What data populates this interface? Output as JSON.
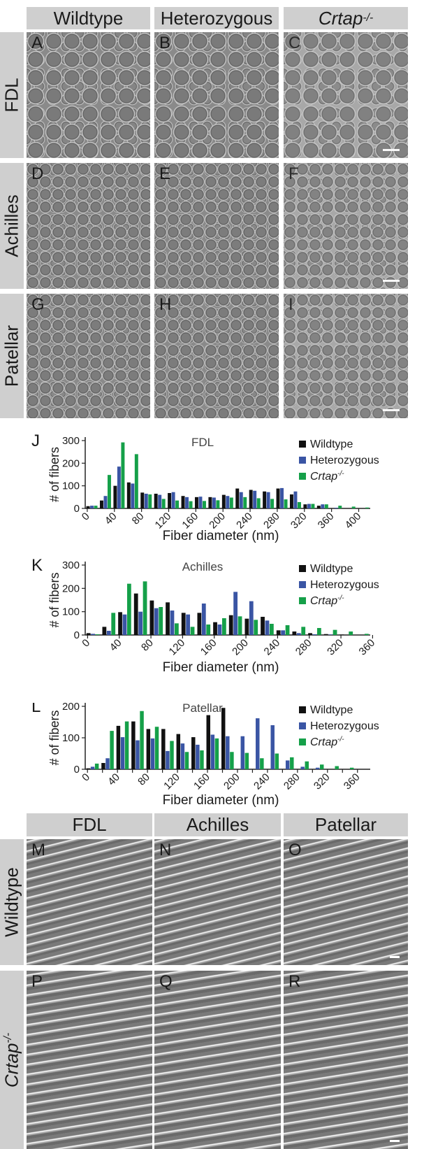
{
  "top_grid": {
    "col_headers": [
      "Wildtype",
      "Heterozygous",
      "Crtap"
    ],
    "col_header_sup": "-/-",
    "row_headers": [
      "FDL",
      "Achilles",
      "Patellar"
    ],
    "panel_labels": [
      "A",
      "B",
      "C",
      "D",
      "E",
      "F",
      "G",
      "H",
      "I"
    ]
  },
  "bottom_grid": {
    "col_headers": [
      "FDL",
      "Achilles",
      "Patellar"
    ],
    "row_headers": [
      "Wildtype",
      "Crtap"
    ],
    "row_header_sup": "-/-",
    "panel_labels": [
      "M",
      "N",
      "O",
      "P",
      "Q",
      "R"
    ]
  },
  "colors": {
    "wildtype": "#111111",
    "heterozygous": "#3a55a4",
    "crtap": "#15a049",
    "header_bg": "#cfcfcf"
  },
  "chart_data": [
    {
      "type": "bar",
      "panel_label": "J",
      "title": "FDL",
      "xlabel": "Fiber diameter (nm)",
      "ylabel": "# of fibers",
      "ylim": [
        0,
        300
      ],
      "yticks": [
        0,
        100,
        200,
        300
      ],
      "xticks": [
        "0",
        "40",
        "80",
        "120",
        "160",
        "200",
        "240",
        "280",
        "320",
        "360",
        "400"
      ],
      "xtick_start": 0,
      "xtick_step": 40,
      "bin_start": 0,
      "bin_step": 20,
      "legend_position": "top-right",
      "series": [
        {
          "name": "Wildtype",
          "values": [
            10,
            35,
            100,
            115,
            70,
            65,
            68,
            55,
            50,
            50,
            60,
            88,
            82,
            75,
            88,
            62,
            18,
            12,
            0,
            0,
            0
          ]
        },
        {
          "name": "Heterozygous",
          "values": [
            12,
            55,
            185,
            110,
            65,
            60,
            72,
            50,
            52,
            48,
            55,
            72,
            78,
            72,
            90,
            75,
            20,
            18,
            3,
            0,
            0
          ]
        },
        {
          "name": "Crtap",
          "values": [
            12,
            148,
            292,
            240,
            62,
            42,
            35,
            32,
            33,
            36,
            48,
            50,
            45,
            42,
            40,
            28,
            20,
            18,
            12,
            8,
            4
          ]
        }
      ]
    },
    {
      "type": "bar",
      "panel_label": "K",
      "title": "Achilles",
      "xlabel": "Fiber diameter (nm)",
      "ylabel": "# of fibers",
      "ylim": [
        0,
        300
      ],
      "yticks": [
        0,
        100,
        200,
        300
      ],
      "xticks": [
        "0",
        "40",
        "80",
        "120",
        "160",
        "200",
        "240",
        "280",
        "320",
        "360"
      ],
      "xtick_start": 0,
      "xtick_step": 40,
      "bin_start": 0,
      "bin_step": 20,
      "legend_position": "top-right",
      "series": [
        {
          "name": "Wildtype",
          "values": [
            8,
            35,
            98,
            178,
            148,
            140,
            95,
            95,
            55,
            85,
            70,
            78,
            20,
            15,
            8,
            4,
            2,
            0
          ]
        },
        {
          "name": "Heterozygous",
          "values": [
            5,
            18,
            88,
            100,
            115,
            105,
            88,
            135,
            45,
            185,
            145,
            62,
            20,
            8,
            3,
            2,
            0,
            0
          ]
        },
        {
          "name": "Crtap",
          "values": [
            3,
            95,
            220,
            230,
            120,
            50,
            35,
            45,
            72,
            80,
            65,
            48,
            42,
            35,
            30,
            22,
            15,
            5
          ]
        }
      ]
    },
    {
      "type": "bar",
      "panel_label": "L",
      "title": "Patellar",
      "xlabel": "Fiber diameter (nm)",
      "ylabel": "# of fibers",
      "ylim": [
        0,
        200
      ],
      "yticks": [
        0,
        100,
        200
      ],
      "xticks": [
        "0",
        "20",
        "40",
        "60",
        "80",
        "100",
        "120",
        "140",
        "160",
        "180",
        "200",
        "220",
        "240",
        "260",
        "280",
        "300",
        "320",
        "340",
        "360"
      ],
      "xtick_labels_shown": [
        "0",
        "40",
        "80",
        "120",
        "160",
        "200",
        "240",
        "280",
        "320",
        "360"
      ],
      "xtick_start": 0,
      "xtick_step": 20,
      "bin_start": 0,
      "bin_step": 20,
      "legend_position": "top-right",
      "series": [
        {
          "name": "Wildtype",
          "values": [
            3,
            20,
            138,
            152,
            128,
            128,
            112,
            102,
            172,
            195,
            0,
            0,
            0,
            0,
            0,
            0,
            0,
            0,
            0
          ]
        },
        {
          "name": "Heterozygous",
          "values": [
            8,
            35,
            102,
            92,
            98,
            58,
            82,
            78,
            110,
            105,
            105,
            162,
            140,
            28,
            8,
            5,
            0,
            0,
            0
          ]
        },
        {
          "name": "Crtap",
          "values": [
            18,
            122,
            152,
            185,
            135,
            90,
            55,
            60,
            98,
            55,
            52,
            35,
            50,
            38,
            25,
            15,
            10,
            5,
            0
          ]
        }
      ]
    }
  ]
}
